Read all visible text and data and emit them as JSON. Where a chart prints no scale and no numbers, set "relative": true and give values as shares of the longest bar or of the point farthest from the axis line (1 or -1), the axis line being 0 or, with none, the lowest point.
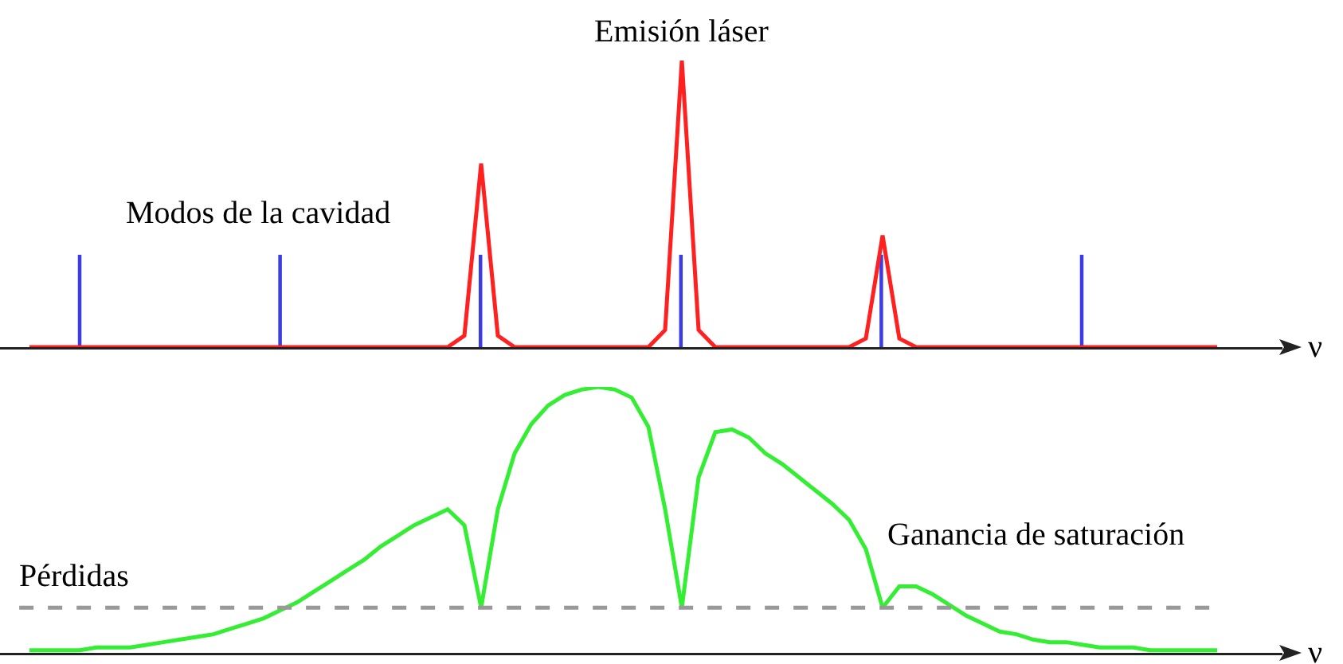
{
  "chart_data": [
    {
      "type": "bar",
      "relative": true,
      "categories": [
        null,
        null,
        null,
        null,
        null,
        null
      ],
      "series": [
        {
          "name": "Modos de la cavidad",
          "color": "#3c3ce6",
          "values": [
            1,
            1,
            1,
            1,
            1,
            1
          ]
        }
      ]
    },
    {
      "type": "line",
      "relative": true,
      "xlabel": "ν",
      "categories": [
        null,
        null,
        null,
        null,
        null,
        null,
        null,
        null,
        null,
        null,
        null,
        null,
        null,
        null,
        null,
        null,
        null,
        null,
        null,
        null,
        null,
        null,
        null,
        null,
        null,
        null,
        null,
        null,
        null,
        null,
        null,
        null,
        null,
        null,
        null,
        null,
        null,
        null,
        null,
        null,
        null,
        null,
        null,
        null,
        null,
        null,
        null,
        null,
        null,
        null,
        null,
        null,
        null,
        null,
        null,
        null,
        null,
        null,
        null,
        null,
        null,
        null,
        null,
        null,
        null,
        null,
        null,
        null,
        null,
        null,
        null,
        null
      ],
      "series": [
        {
          "name": "Emisión láser",
          "color": "#ff2020",
          "values": [
            0,
            0,
            0,
            0,
            0,
            0,
            0,
            0,
            0,
            0,
            0,
            0,
            0,
            0,
            0,
            0,
            0,
            0,
            0,
            0,
            0,
            0,
            0,
            0,
            0,
            0,
            0.04,
            0.64,
            0.04,
            0,
            0,
            0,
            0,
            0,
            0,
            0,
            0,
            0,
            0.06,
            1,
            0.06,
            0,
            0,
            0,
            0,
            0,
            0,
            0,
            0,
            0,
            0.03,
            0.39,
            0.03,
            0,
            0,
            0,
            0,
            0,
            0,
            0,
            0,
            0,
            0,
            0,
            0,
            0,
            0,
            0,
            0,
            0,
            0,
            0
          ]
        }
      ]
    },
    {
      "type": "line",
      "relative": true,
      "xlabel": "ν",
      "categories": [
        null,
        null,
        null,
        null,
        null,
        null,
        null,
        null,
        null,
        null,
        null,
        null,
        null,
        null,
        null,
        null,
        null,
        null,
        null,
        null,
        null,
        null,
        null,
        null,
        null,
        null,
        null,
        null,
        null,
        null,
        null,
        null,
        null,
        null,
        null,
        null,
        null,
        null,
        null,
        null,
        null,
        null,
        null,
        null,
        null,
        null,
        null,
        null,
        null,
        null,
        null,
        null,
        null,
        null,
        null,
        null,
        null,
        null,
        null,
        null,
        null,
        null,
        null,
        null,
        null,
        null,
        null,
        null,
        null,
        null,
        null,
        null
      ],
      "series": [
        {
          "name": "Ganancia de saturación",
          "color": "#33ee33",
          "values": [
            0.01,
            0.01,
            0.01,
            0.01,
            0.02,
            0.02,
            0.02,
            0.03,
            0.04,
            0.05,
            0.06,
            0.07,
            0.09,
            0.11,
            0.13,
            0.16,
            0.19,
            0.23,
            0.27,
            0.31,
            0.35,
            0.4,
            0.44,
            0.48,
            0.51,
            0.54,
            0.48,
            0.17,
            0.54,
            0.75,
            0.86,
            0.93,
            0.97,
            0.99,
            1,
            0.99,
            0.96,
            0.85,
            0.54,
            0.17,
            0.66,
            0.83,
            0.84,
            0.81,
            0.75,
            0.71,
            0.66,
            0.61,
            0.56,
            0.5,
            0.39,
            0.17,
            0.25,
            0.25,
            0.22,
            0.18,
            0.14,
            0.11,
            0.08,
            0.07,
            0.05,
            0.04,
            0.04,
            0.03,
            0.02,
            0.02,
            0.02,
            0.01,
            0.01,
            0.01,
            0.01,
            0.01
          ]
        }
      ],
      "ref_lines": [
        {
          "axis": "y",
          "value": 0.17,
          "label": "Pérdidas",
          "color": "#999999",
          "line_style": "dashed"
        }
      ]
    }
  ]
}
